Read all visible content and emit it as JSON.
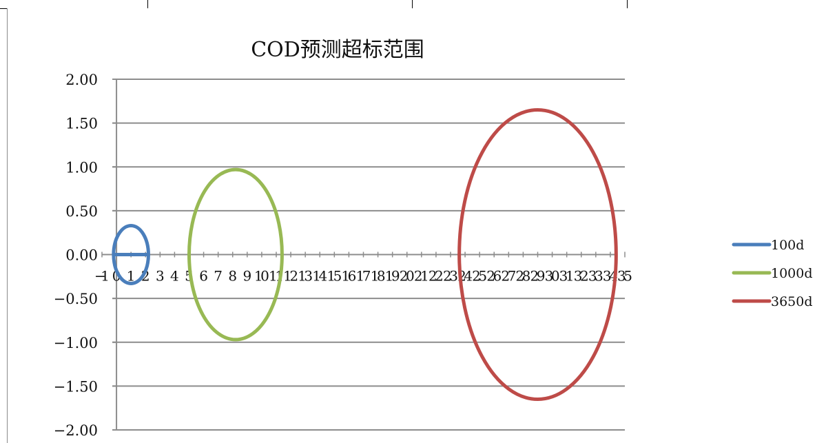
{
  "chart_data": {
    "type": "scatter",
    "title": "COD预测超标范围",
    "xlabel": "",
    "ylabel": "",
    "xlim": [
      -1,
      35
    ],
    "ylim": [
      -2.0,
      2.0
    ],
    "xticks": [
      "-1",
      "0",
      "1",
      "2",
      "3",
      "4",
      "5",
      "6",
      "7",
      "8",
      "9",
      "10",
      "11",
      "12",
      "13",
      "14",
      "15",
      "16",
      "17",
      "18",
      "19",
      "20",
      "21",
      "22",
      "23",
      "24",
      "25",
      "26",
      "27",
      "28",
      "29",
      "30",
      "31",
      "32",
      "33",
      "34",
      "35"
    ],
    "yticks": [
      "2.00",
      "1.50",
      "1.00",
      "0.50",
      "0.00",
      "-0.50",
      "-1.00",
      "-1.50",
      "-2.00"
    ],
    "grid": true,
    "legend_position": "right",
    "series": [
      {
        "name": "100d",
        "color": "#4a7ebb",
        "shape": "ellipse",
        "center_x": 1.0,
        "center_y": 0.0,
        "semi_axis_x": 1.2,
        "semi_axis_y": 0.33,
        "includes_axis_line": true
      },
      {
        "name": "1000d",
        "color": "#98b954",
        "shape": "ellipse",
        "center_x": 8.2,
        "center_y": 0.0,
        "semi_axis_x": 3.2,
        "semi_axis_y": 0.97
      },
      {
        "name": "3650d",
        "color": "#be4b48",
        "shape": "ellipse",
        "center_x": 29.0,
        "center_y": 0.0,
        "semi_axis_x": 5.4,
        "semi_axis_y": 1.65
      }
    ]
  }
}
